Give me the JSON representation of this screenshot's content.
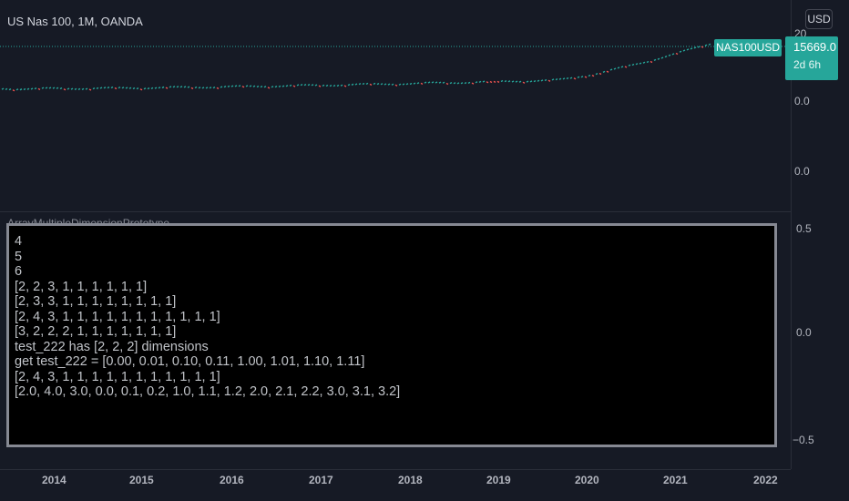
{
  "chart": {
    "title": "US Nas 100, 1M, OANDA",
    "currency_button": "USD",
    "price_axis_top": [
      "20",
      "0.0",
      "0.0"
    ],
    "price_tag": {
      "symbol": "NAS100USD",
      "value": "15669.0",
      "countdown": "2d 6h"
    },
    "colors": {
      "up": "#26a69a",
      "down": "#ef5350",
      "background": "#161a25"
    }
  },
  "indicator": {
    "title": "ArrayMultipleDimensionPrototype",
    "price_axis": [
      "0.5",
      "0.0",
      "−0.5"
    ],
    "console_lines": [
      "4",
      "5",
      "6",
      "[2, 2, 3, 1, 1, 1, 1, 1, 1]",
      "[2, 3, 3, 1, 1, 1, 1, 1, 1, 1, 1]",
      "[2, 4, 3, 1, 1, 1, 1, 1, 1, 1, 1, 1, 1, 1]",
      "[3, 2, 2, 2, 1, 1, 1, 1, 1, 1, 1]",
      "test_222 has [2, 2, 2] dimensions",
      "get test_222 = [0.00, 0.01, 0.10, 0.11, 1.00, 1.01, 1.10, 1.11]",
      "[2, 4, 3, 1, 1, 1, 1, 1, 1, 1, 1, 1, 1, 1]",
      "[2.0, 4.0, 3.0, 0.0, 0.1, 0.2, 1.0, 1.1, 1.2, 2.0, 2.1, 2.2, 3.0, 3.1, 3.2]"
    ]
  },
  "time_axis": [
    "2014",
    "2015",
    "2016",
    "2017",
    "2018",
    "2019",
    "2020",
    "2021",
    "2022"
  ]
}
